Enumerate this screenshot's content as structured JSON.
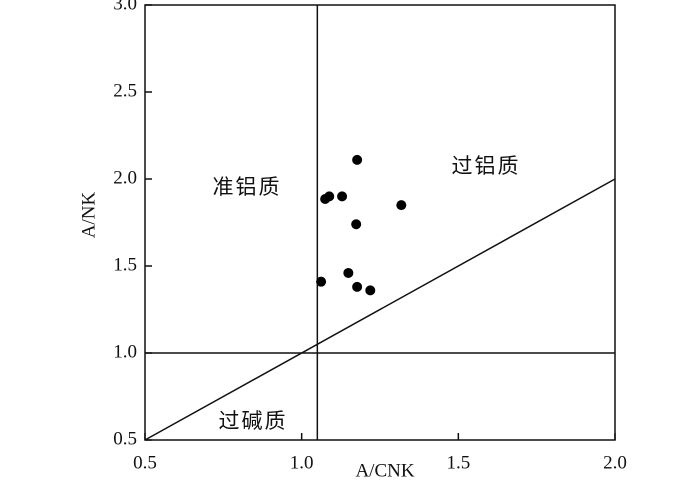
{
  "chart_data": {
    "type": "scatter",
    "x_label": "A/CNK",
    "y_label": "A/NK",
    "x": [
      1.177,
      1.318,
      1.129,
      1.088,
      1.075,
      1.174,
      1.062,
      1.149,
      1.177,
      1.219
    ],
    "values": [
      2.11,
      1.85,
      1.9,
      1.9,
      1.885,
      1.74,
      1.41,
      1.46,
      1.38,
      1.36
    ],
    "color": "#000000",
    "xlim": [
      0.5,
      2.0
    ],
    "ylim": [
      0.5,
      3.0
    ],
    "xticks": [
      {
        "value": 0.5,
        "label": "0.5"
      },
      {
        "value": 1,
        "label": "1.0"
      },
      {
        "value": 1.5,
        "label": "1.5"
      },
      {
        "value": 2,
        "label": "2.0"
      }
    ],
    "yticks": [
      {
        "value": 0.5,
        "label": "0.5"
      },
      {
        "value": 1,
        "label": "1.0"
      },
      {
        "value": 1.5,
        "label": "1.5"
      },
      {
        "value": 2,
        "label": "2.0"
      },
      {
        "value": 2.5,
        "label": "2.5"
      },
      {
        "value": 3,
        "label": "3.0"
      }
    ],
    "lines": [
      {
        "x": [
          0.5,
          2.0
        ],
        "y": [
          0.5,
          2.0
        ]
      },
      {
        "x": [
          1.05,
          1.05
        ],
        "y": [
          0.5,
          3.0
        ]
      },
      {
        "x": [
          0.5,
          2.0
        ],
        "y": [
          1.0,
          1.0
        ]
      }
    ],
    "annotations": [
      "准铝质",
      "过铝质",
      "过碱质"
    ]
  }
}
